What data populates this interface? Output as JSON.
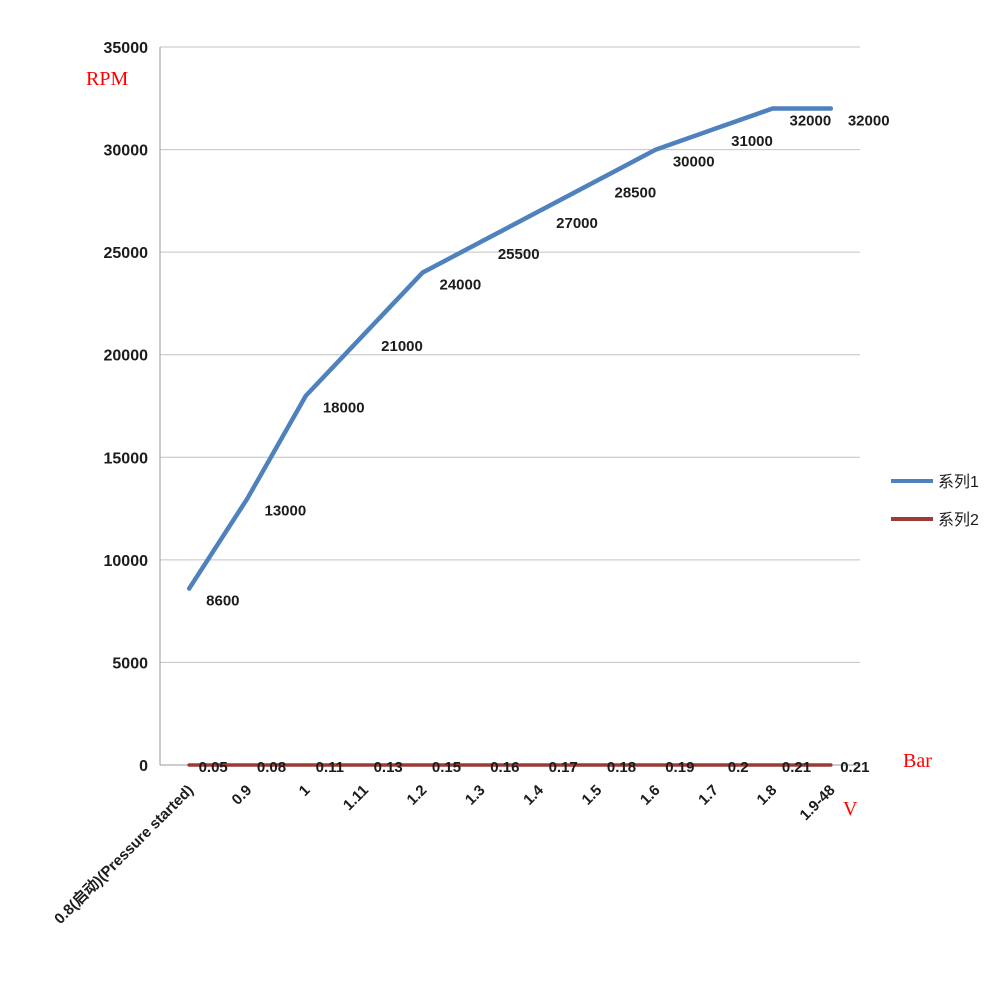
{
  "chart_data": {
    "type": "line",
    "title": "",
    "ylabel": "RPM",
    "xlabel": "V",
    "y2label": "Bar",
    "ylim": [
      0,
      35000
    ],
    "ytick_step": 5000,
    "yticks": [
      "0",
      "5000",
      "10000",
      "15000",
      "20000",
      "25000",
      "30000",
      "35000"
    ],
    "grid": true,
    "legend_position": "right",
    "categories": [
      "0.8(启动)(Pressure started)",
      "0.9",
      "1",
      "1.11",
      "1.2",
      "1.3",
      "1.4",
      "1.5",
      "1.6",
      "1.7",
      "1.8",
      "1.9-48"
    ],
    "series": [
      {
        "name": "系列1",
        "color": "#4F81BD",
        "values": [
          8600,
          13000,
          18000,
          21000,
          24000,
          25500,
          27000,
          28500,
          30000,
          31000,
          32000,
          32000
        ],
        "labels": [
          "8600",
          "13000",
          "18000",
          "21000",
          "24000",
          "25500",
          "27000",
          "28500",
          "30000",
          "31000",
          "32000",
          "32000"
        ]
      },
      {
        "name": "系列2",
        "color": "#9A3B35",
        "values": [
          0.05,
          0.08,
          0.11,
          0.13,
          0.15,
          0.16,
          0.17,
          0.18,
          0.19,
          0.2,
          0.21,
          0.21
        ],
        "labels": [
          "0.05",
          "0.08",
          "0.11",
          "0.13",
          "0.15",
          "0.16",
          "0.17",
          "0.18",
          "0.19",
          "0.2",
          "0.21",
          "0.21"
        ]
      }
    ],
    "colors": {
      "grid": "#c3c3c3",
      "axis": "#9a9a9a",
      "text": "#1c1c1c",
      "unit_labels": "#ff0000"
    }
  }
}
